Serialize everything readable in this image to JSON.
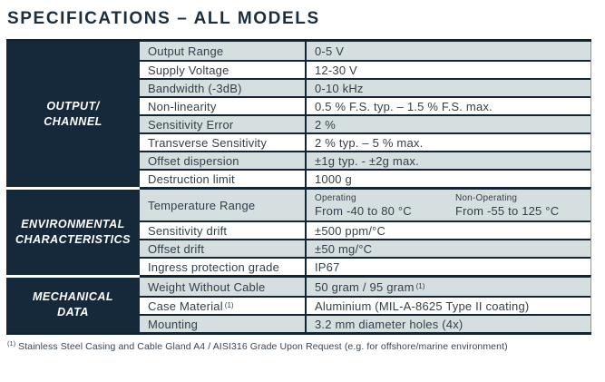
{
  "title": "SPECIFICATIONS – ALL MODELS",
  "colors": {
    "dark": "#16293a",
    "border": "#132433",
    "gray": "#d5dfdf",
    "title": "#1c2e3e",
    "text": "#333f4a"
  },
  "table": {
    "sections": [
      {
        "header_lines": [
          "OUTPUT/",
          "CHANNEL"
        ],
        "rows": [
          {
            "label": "Output Range",
            "value": "0-5 V"
          },
          {
            "label": "Supply Voltage",
            "value": "12-30 V"
          },
          {
            "label": "Bandwidth (-3dB)",
            "value": "0-10 kHz"
          },
          {
            "label": "Non-linearity",
            "value": "0.5 % F.S. typ. – 1.5 % F.S. max."
          },
          {
            "label": "Sensitivity Error",
            "value": "2 %"
          },
          {
            "label": "Transverse Sensitivity",
            "value": "2 % typ. – 5 % max."
          },
          {
            "label": "Offset dispersion",
            "value": "±1g typ. - ±2g max."
          },
          {
            "label": "Destruction limit",
            "value": "1000 g"
          }
        ]
      },
      {
        "header_lines": [
          "ENVIRONMENTAL",
          "CHARACTERISTICS"
        ],
        "rows": [
          {
            "label": "Temperature Range",
            "value_columns": [
              {
                "header": "Operating",
                "value": "From -40 to 80 °C"
              },
              {
                "header": "Non-Operating",
                "value": "From -55 to 125 °C"
              }
            ]
          },
          {
            "label": "Sensitivity drift",
            "value": "±500 ppm/°C"
          },
          {
            "label": "Offset drift",
            "value": "±50 mg/°C"
          },
          {
            "label": "Ingress protection grade",
            "value": "IP67"
          }
        ]
      },
      {
        "header_lines": [
          "MECHANICAL",
          "DATA"
        ],
        "rows": [
          {
            "label": "Weight Without Cable",
            "value": "50 gram / 95 gram",
            "value_sup": "(1)"
          },
          {
            "label": "Case Material",
            "label_sup": "(1)",
            "value": "Aluminium (MIL-A-8625 Type II coating)"
          },
          {
            "label": "Mounting",
            "value": "3.2 mm diameter holes (4x)"
          }
        ]
      }
    ]
  },
  "footnote": {
    "marker": "(1)",
    "text": "Stainless Steel Casing and Cable Gland A4 / AISI316 Grade Upon Request (e.g. for offshore/marine environment)"
  }
}
